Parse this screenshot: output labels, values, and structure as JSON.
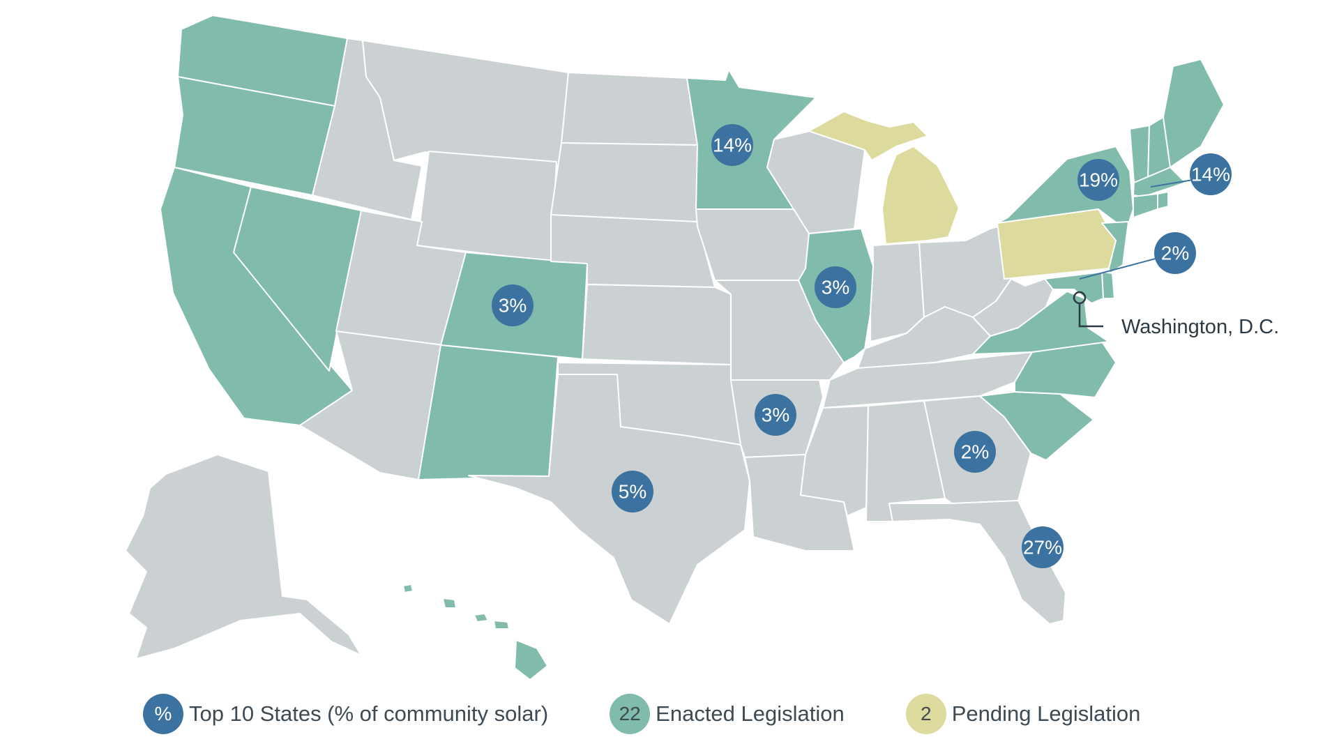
{
  "colors": {
    "enacted": "#80bbab",
    "pending": "#dcdb9d",
    "none": "#cbd1d3",
    "top10": "#3b72a0",
    "border": "#ffffff"
  },
  "top10_states": [
    {
      "state": "Minnesota",
      "share": "14%"
    },
    {
      "state": "New York",
      "share": "19%"
    },
    {
      "state": "Massachusetts",
      "share": "14%"
    },
    {
      "state": "New Jersey",
      "share": "2%"
    },
    {
      "state": "Colorado",
      "share": "3%"
    },
    {
      "state": "Illinois",
      "share": "3%"
    },
    {
      "state": "Arkansas",
      "share": "3%"
    },
    {
      "state": "Texas",
      "share": "5%"
    },
    {
      "state": "Georgia",
      "share": "2%"
    },
    {
      "state": "Florida",
      "share": "27%"
    }
  ],
  "enacted_states": [
    "Washington",
    "Oregon",
    "California",
    "Nevada",
    "Colorado",
    "New Mexico",
    "Minnesota",
    "Illinois",
    "Hawaii",
    "Maine",
    "New Hampshire",
    "Vermont",
    "Massachusetts",
    "Rhode Island",
    "Connecticut",
    "New York",
    "New Jersey",
    "Delaware",
    "Maryland",
    "Virginia",
    "North Carolina",
    "South Carolina"
  ],
  "pending_states": [
    "Michigan",
    "Pennsylvania"
  ],
  "annotation": {
    "label": "Washington, D.C.",
    "icon": "location-pin-icon"
  },
  "legend": [
    {
      "symbol": "%",
      "label": "Top 10 States (% of community solar)",
      "kind": "top10"
    },
    {
      "symbol": "22",
      "label": "Enacted Legislation",
      "kind": "enacted"
    },
    {
      "symbol": "2",
      "label": "Pending Legislation",
      "kind": "pending"
    }
  ]
}
